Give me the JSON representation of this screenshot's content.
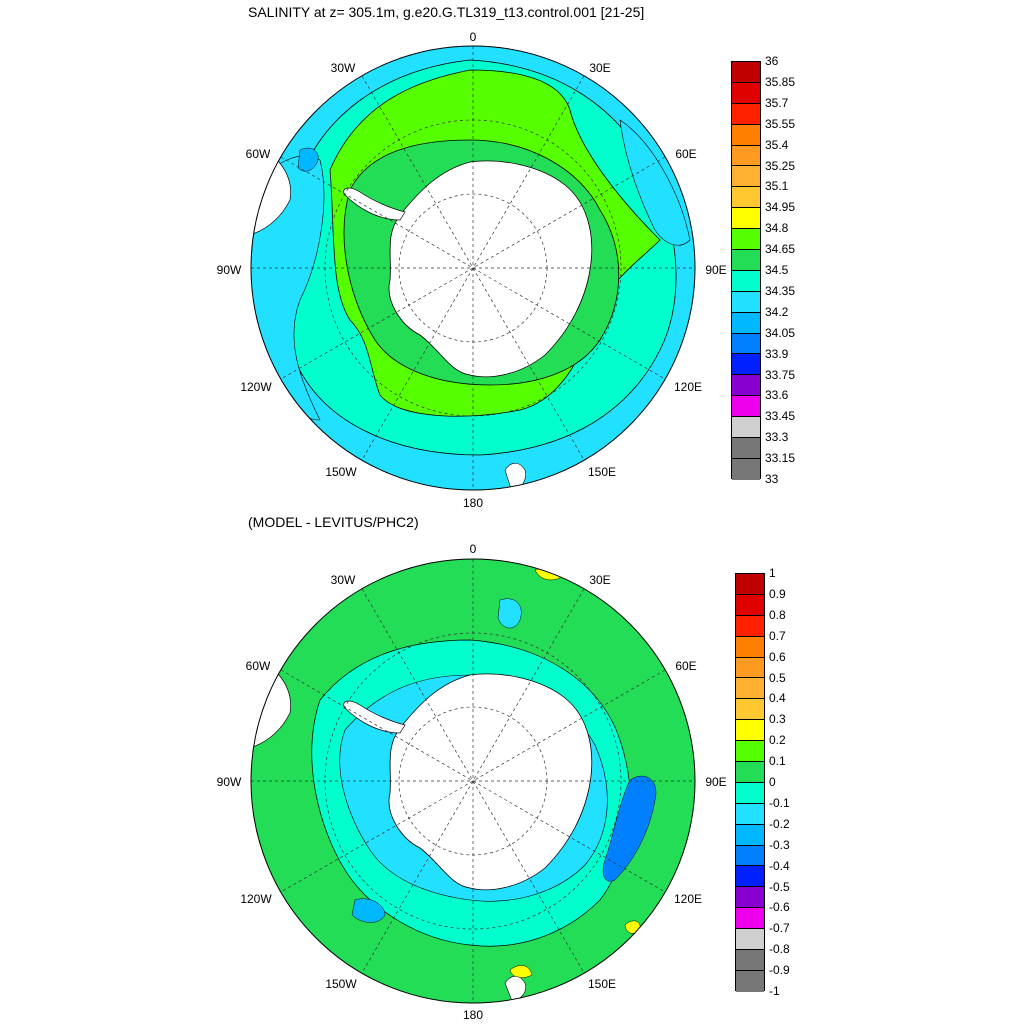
{
  "panels": [
    {
      "id": "top",
      "title": "SALINITY at z= 305.1m, g.e20.G.TL319_t13.control.001 [21-25]",
      "labels": {
        "top": "0",
        "upper_left": "30W",
        "upper_right": "30E",
        "left_upper": "60W",
        "right_upper": "60E",
        "left": "90W",
        "right": "90E",
        "left_lower": "120W",
        "right_lower": "120E",
        "lower_left": "150W",
        "lower_right": "150E",
        "bottom": "180"
      },
      "colorbar": {
        "ticks": [
          "36",
          "35.85",
          "35.7",
          "35.55",
          "35.4",
          "35.25",
          "35.1",
          "34.95",
          "34.8",
          "34.65",
          "34.5",
          "34.35",
          "34.2",
          "34.05",
          "33.9",
          "33.75",
          "33.6",
          "33.45",
          "33.3",
          "33.15",
          "33"
        ],
        "colors": [
          "#c00000",
          "#e00000",
          "#ff2000",
          "#ff8000",
          "#ff9a20",
          "#ffb030",
          "#ffc830",
          "#ffff00",
          "#55ff00",
          "#22dd55",
          "#00ffcc",
          "#22e0ff",
          "#00b8ff",
          "#0080ff",
          "#0020ff",
          "#8800d0",
          "#ee00ee",
          "#d0d0d0",
          "#777777",
          "#777777"
        ]
      }
    },
    {
      "id": "bottom",
      "title": "(MODEL - LEVITUS/PHC2)",
      "labels": {
        "top": "0",
        "upper_left": "30W",
        "upper_right": "30E",
        "left_upper": "60W",
        "right_upper": "60E",
        "left": "90W",
        "right": "90E",
        "left_lower": "120W",
        "right_lower": "120E",
        "lower_left": "150W",
        "lower_right": "150E",
        "bottom": "180"
      },
      "colorbar": {
        "ticks": [
          "1",
          "0.9",
          "0.8",
          "0.7",
          "0.6",
          "0.5",
          "0.4",
          "0.3",
          "0.2",
          "0.1",
          "0",
          "-0.1",
          "-0.2",
          "-0.3",
          "-0.4",
          "-0.5",
          "-0.6",
          "-0.7",
          "-0.8",
          "-0.9",
          "-1"
        ],
        "colors": [
          "#c00000",
          "#e00000",
          "#ff2000",
          "#ff8000",
          "#ff9a20",
          "#ffb030",
          "#ffc830",
          "#ffff00",
          "#55ff00",
          "#22dd55",
          "#00ffcc",
          "#22e0ff",
          "#00b8ff",
          "#0080ff",
          "#0020ff",
          "#8800d0",
          "#ee00ee",
          "#d0d0d0",
          "#777777",
          "#777777"
        ]
      }
    }
  ],
  "colors": {
    "ocean_base_top": "#22e0ff",
    "ocean_base_bottom": "#22dd55",
    "land": "#ffffff",
    "green": "#55ff00",
    "mid_green": "#22dd55",
    "cyan": "#22e0ff",
    "aqua": "#00ffcc",
    "light_blue": "#00b8ff",
    "blue": "#0080ff",
    "yellow": "#ffff00"
  }
}
